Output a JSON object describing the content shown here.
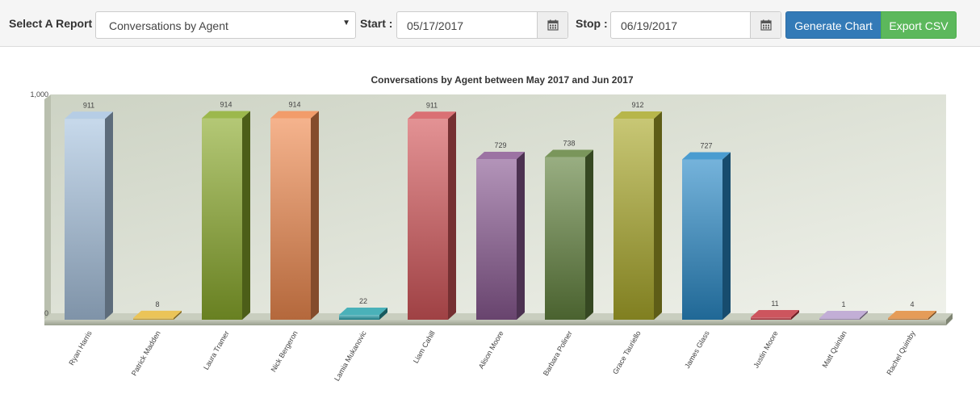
{
  "toolbar": {
    "report_label": "Select A Report",
    "report_value": "Conversations by Agent",
    "start_label": "Start",
    "start_value": "05/17/2017",
    "stop_label": "Stop",
    "stop_value": "06/19/2017",
    "generate_label": "Generate Chart",
    "export_label": "Export CSV"
  },
  "colors": {
    "primary": "#337ab7",
    "success": "#5cb85c"
  },
  "chart_data": {
    "type": "bar",
    "title": "Conversations by Agent between May 2017 and Jun 2017",
    "xlabel": "",
    "ylabel": "",
    "ylim": [
      0,
      1000
    ],
    "y_ticks": [
      "0",
      "1,000"
    ],
    "grid": false,
    "legend": "none",
    "categories": [
      "Ryan Harris",
      "Patrick Madden",
      "Laura Tramer",
      "Nick Bergeron",
      "Lamia Mukanovic",
      "Liam Cahill",
      "Alison Moore",
      "Barbara Poliner",
      "Grace Tauriello",
      "James Glass",
      "Justin Moore",
      "Matt Quinlan",
      "Rachel Quimby"
    ],
    "values": [
      911,
      8,
      914,
      914,
      22,
      911,
      729,
      738,
      912,
      727,
      11,
      1,
      4
    ],
    "colors": [
      "#a9c4e0",
      "#e8b93a",
      "#8bab2c",
      "#f08a50",
      "#2aa3ad",
      "#d4575b",
      "#8a5a93",
      "#62833e",
      "#aaa92a",
      "#2a8ac8",
      "#c43742",
      "#b7a0cf",
      "#e08a3a"
    ]
  }
}
